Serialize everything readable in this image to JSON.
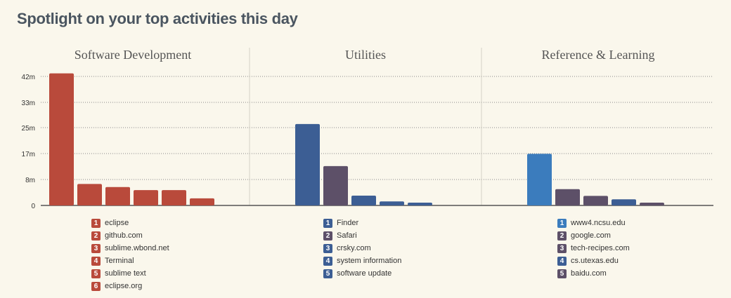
{
  "page": {
    "title": "Spotlight on your top activities this day"
  },
  "colors": {
    "software": "#b94a3b",
    "blue": "#3c5e94",
    "purple": "#5d5068",
    "lightblue": "#3b7cbd"
  },
  "chart_data": {
    "type": "bar",
    "y_ticks": [
      "42m",
      "33m",
      "25m",
      "17m",
      "8m",
      "0"
    ],
    "ylim": [
      0,
      42
    ],
    "grid": true,
    "panels": [
      {
        "title": "Software Development",
        "categories": [
          "eclipse",
          "github.com",
          "sublime.wbond.net",
          "Terminal",
          "sublime text",
          "eclipse.org"
        ],
        "values": [
          43,
          7,
          6,
          5,
          5,
          2.3
        ],
        "colors": [
          "#b94a3b",
          "#b94a3b",
          "#b94a3b",
          "#b94a3b",
          "#b94a3b",
          "#b94a3b"
        ]
      },
      {
        "title": "Utilities",
        "categories": [
          "Finder",
          "Safari",
          "crsky.com",
          "system information",
          "software update"
        ],
        "values": [
          26.5,
          12.8,
          3.2,
          1.3,
          0.9
        ],
        "colors": [
          "#3c5e94",
          "#5d5068",
          "#3c5e94",
          "#3c5e94",
          "#3c5e94"
        ]
      },
      {
        "title": "Reference & Learning",
        "categories": [
          "www4.ncsu.edu",
          "google.com",
          "tech-recipes.com",
          "cs.utexas.edu",
          "baidu.com"
        ],
        "values": [
          16.8,
          5.3,
          3.1,
          2.0,
          0.9
        ],
        "colors": [
          "#3b7cbd",
          "#5d5068",
          "#5d5068",
          "#3c5e94",
          "#5d5068"
        ]
      }
    ]
  }
}
